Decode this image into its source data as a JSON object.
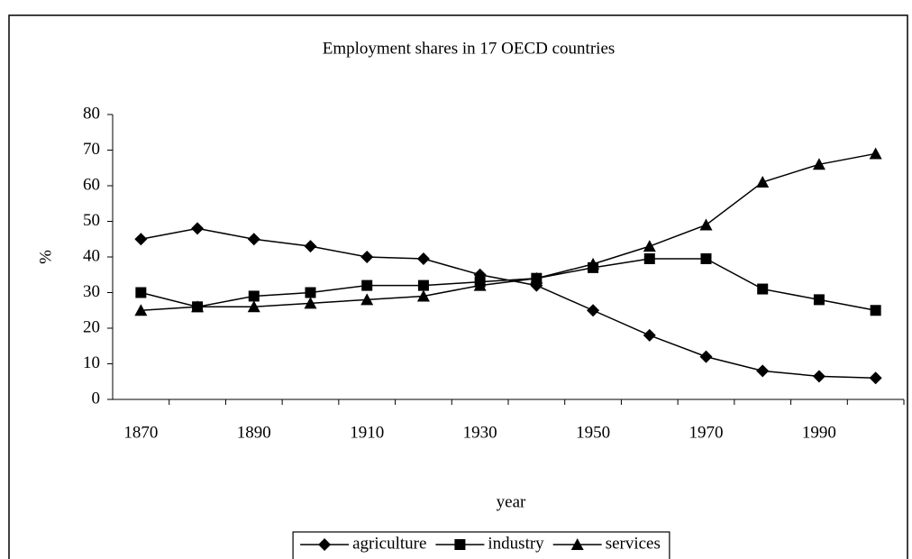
{
  "chart_data": {
    "type": "line",
    "title": "Employment shares in 17 OECD countries",
    "x_label": "year",
    "y_label": "%",
    "categories": [
      "1870",
      null,
      "1890",
      null,
      "1910",
      null,
      "1930",
      null,
      "1950",
      null,
      "1970",
      null,
      "1990",
      null
    ],
    "series": [
      {
        "name": "agriculture",
        "color": "#000000",
        "marker": "diamond",
        "values": [
          45,
          48,
          45,
          43,
          40,
          39.5,
          35,
          32,
          25,
          18,
          12,
          8,
          6.5,
          6
        ]
      },
      {
        "name": "industry",
        "color": "#000000",
        "marker": "square",
        "values": [
          30,
          26,
          29,
          30,
          32,
          32,
          33,
          34,
          37,
          39.5,
          39.5,
          31,
          28,
          25
        ]
      },
      {
        "name": "services",
        "color": "#000000",
        "marker": "triangle",
        "values": [
          25,
          26,
          26,
          27,
          28,
          29,
          32,
          34,
          38,
          43,
          49,
          61,
          66,
          69
        ]
      }
    ],
    "ylim": [
      0,
      80
    ],
    "yticks": [
      0,
      10,
      20,
      30,
      40,
      50,
      60,
      70,
      80
    ],
    "grid": false,
    "legend": "bottom"
  }
}
